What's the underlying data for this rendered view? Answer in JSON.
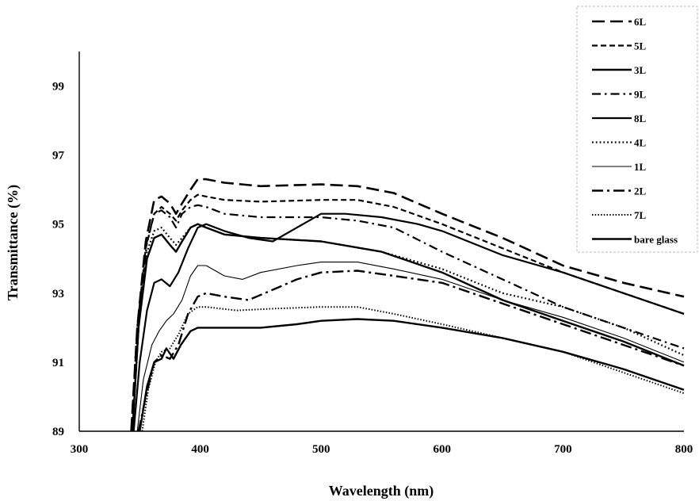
{
  "chart_data": {
    "type": "line",
    "xlabel": "Wavelength (nm)",
    "ylabel": "Transmittance (%)",
    "xlim": [
      300,
      800
    ],
    "ylim": [
      89,
      100
    ],
    "x_ticks": [
      300,
      400,
      500,
      600,
      700,
      800
    ],
    "y_ticks": [
      89,
      91,
      93,
      95,
      97,
      99
    ],
    "grid": false,
    "legend_position": "top-right",
    "series": [
      {
        "name": "6L",
        "style": "long-dash",
        "points": [
          [
            343,
            89
          ],
          [
            348,
            92
          ],
          [
            355,
            94.5
          ],
          [
            362,
            95.7
          ],
          [
            368,
            95.8
          ],
          [
            375,
            95.6
          ],
          [
            380,
            95.3
          ],
          [
            385,
            95.6
          ],
          [
            392,
            96.0
          ],
          [
            398,
            96.3
          ],
          [
            405,
            96.3
          ],
          [
            420,
            96.2
          ],
          [
            450,
            96.1
          ],
          [
            500,
            96.15
          ],
          [
            530,
            96.1
          ],
          [
            560,
            95.9
          ],
          [
            600,
            95.3
          ],
          [
            650,
            94.6
          ],
          [
            700,
            93.8
          ],
          [
            750,
            93.3
          ],
          [
            800,
            92.9
          ]
        ]
      },
      {
        "name": "5L",
        "style": "dash",
        "points": [
          [
            343,
            89
          ],
          [
            348,
            92
          ],
          [
            355,
            94.3
          ],
          [
            362,
            95.3
          ],
          [
            368,
            95.5
          ],
          [
            375,
            95.3
          ],
          [
            380,
            95.1
          ],
          [
            385,
            95.4
          ],
          [
            392,
            95.7
          ],
          [
            398,
            95.85
          ],
          [
            405,
            95.8
          ],
          [
            420,
            95.7
          ],
          [
            450,
            95.65
          ],
          [
            500,
            95.7
          ],
          [
            530,
            95.7
          ],
          [
            560,
            95.5
          ],
          [
            600,
            95.0
          ],
          [
            650,
            94.3
          ],
          [
            700,
            93.6
          ],
          [
            750,
            93.0
          ],
          [
            800,
            92.4
          ]
        ]
      },
      {
        "name": "3L",
        "style": "solid-thick",
        "points": [
          [
            344,
            89
          ],
          [
            349,
            92
          ],
          [
            356,
            94.0
          ],
          [
            362,
            94.6
          ],
          [
            368,
            94.7
          ],
          [
            375,
            94.4
          ],
          [
            380,
            94.2
          ],
          [
            385,
            94.5
          ],
          [
            392,
            94.9
          ],
          [
            398,
            95.0
          ],
          [
            405,
            94.9
          ],
          [
            420,
            94.7
          ],
          [
            450,
            94.6
          ],
          [
            500,
            94.5
          ],
          [
            550,
            94.2
          ],
          [
            600,
            93.6
          ],
          [
            650,
            92.8
          ],
          [
            700,
            92.2
          ],
          [
            750,
            91.6
          ],
          [
            800,
            90.9
          ]
        ]
      },
      {
        "name": "9L",
        "style": "dash-dot",
        "points": [
          [
            344,
            89
          ],
          [
            349,
            92
          ],
          [
            356,
            94.5
          ],
          [
            362,
            95.3
          ],
          [
            368,
            95.4
          ],
          [
            375,
            95.2
          ],
          [
            380,
            94.9
          ],
          [
            385,
            95.3
          ],
          [
            392,
            95.5
          ],
          [
            398,
            95.55
          ],
          [
            405,
            95.5
          ],
          [
            420,
            95.3
          ],
          [
            450,
            95.2
          ],
          [
            500,
            95.2
          ],
          [
            530,
            95.1
          ],
          [
            560,
            94.9
          ],
          [
            600,
            94.2
          ],
          [
            650,
            93.4
          ],
          [
            700,
            92.6
          ],
          [
            750,
            92.0
          ],
          [
            800,
            91.4
          ]
        ]
      },
      {
        "name": "8L",
        "style": "solid-medium",
        "points": [
          [
            345,
            89
          ],
          [
            350,
            91
          ],
          [
            356,
            92.5
          ],
          [
            362,
            93.3
          ],
          [
            368,
            93.4
          ],
          [
            375,
            93.2
          ],
          [
            382,
            93.6
          ],
          [
            390,
            94.3
          ],
          [
            398,
            94.9
          ],
          [
            405,
            95.0
          ],
          [
            420,
            94.8
          ],
          [
            440,
            94.6
          ],
          [
            460,
            94.5
          ],
          [
            480,
            94.9
          ],
          [
            500,
            95.3
          ],
          [
            520,
            95.3
          ],
          [
            550,
            95.2
          ],
          [
            580,
            95.0
          ],
          [
            600,
            94.8
          ],
          [
            650,
            94.1
          ],
          [
            700,
            93.6
          ],
          [
            750,
            93.0
          ],
          [
            800,
            92.4
          ]
        ]
      },
      {
        "name": "4L",
        "style": "dot",
        "points": [
          [
            344,
            89
          ],
          [
            349,
            92
          ],
          [
            356,
            94.2
          ],
          [
            362,
            94.8
          ],
          [
            368,
            94.9
          ],
          [
            375,
            94.6
          ],
          [
            380,
            94.4
          ],
          [
            385,
            94.6
          ],
          [
            392,
            94.9
          ],
          [
            398,
            95.0
          ],
          [
            405,
            94.9
          ],
          [
            420,
            94.7
          ],
          [
            450,
            94.6
          ],
          [
            500,
            94.5
          ],
          [
            550,
            94.2
          ],
          [
            600,
            93.7
          ],
          [
            650,
            93.0
          ],
          [
            700,
            92.6
          ],
          [
            750,
            92.0
          ],
          [
            800,
            91.2
          ]
        ]
      },
      {
        "name": "1L",
        "style": "solid-thin",
        "points": [
          [
            348,
            89
          ],
          [
            353,
            90.5
          ],
          [
            360,
            91.5
          ],
          [
            366,
            91.9
          ],
          [
            372,
            92.2
          ],
          [
            378,
            92.4
          ],
          [
            385,
            92.8
          ],
          [
            392,
            93.5
          ],
          [
            398,
            93.8
          ],
          [
            405,
            93.8
          ],
          [
            420,
            93.5
          ],
          [
            435,
            93.4
          ],
          [
            450,
            93.6
          ],
          [
            480,
            93.8
          ],
          [
            500,
            93.9
          ],
          [
            530,
            93.9
          ],
          [
            560,
            93.7
          ],
          [
            600,
            93.4
          ],
          [
            650,
            92.8
          ],
          [
            700,
            92.3
          ],
          [
            750,
            91.7
          ],
          [
            800,
            91.0
          ]
        ]
      },
      {
        "name": "2L",
        "style": "long-dash-dot",
        "points": [
          [
            349,
            89
          ],
          [
            355,
            90
          ],
          [
            362,
            91.0
          ],
          [
            368,
            91.2
          ],
          [
            375,
            91.1
          ],
          [
            382,
            91.5
          ],
          [
            390,
            92.4
          ],
          [
            398,
            92.9
          ],
          [
            405,
            93.0
          ],
          [
            420,
            92.9
          ],
          [
            440,
            92.8
          ],
          [
            460,
            93.1
          ],
          [
            480,
            93.4
          ],
          [
            500,
            93.6
          ],
          [
            530,
            93.65
          ],
          [
            560,
            93.5
          ],
          [
            600,
            93.3
          ],
          [
            650,
            92.7
          ],
          [
            700,
            92.1
          ],
          [
            750,
            91.5
          ],
          [
            800,
            90.9
          ]
        ]
      },
      {
        "name": "7L",
        "style": "dot-fine",
        "points": [
          [
            352,
            89
          ],
          [
            357,
            90.2
          ],
          [
            363,
            91.0
          ],
          [
            368,
            91.3
          ],
          [
            375,
            91.4
          ],
          [
            382,
            91.8
          ],
          [
            390,
            92.4
          ],
          [
            398,
            92.6
          ],
          [
            405,
            92.6
          ],
          [
            430,
            92.5
          ],
          [
            460,
            92.55
          ],
          [
            500,
            92.6
          ],
          [
            530,
            92.6
          ],
          [
            560,
            92.4
          ],
          [
            600,
            92.1
          ],
          [
            650,
            91.7
          ],
          [
            700,
            91.3
          ],
          [
            750,
            90.7
          ],
          [
            800,
            90.1
          ]
        ]
      },
      {
        "name": "bare glass",
        "style": "solid-thick",
        "points": [
          [
            350,
            89
          ],
          [
            356,
            90.3
          ],
          [
            362,
            91.0
          ],
          [
            368,
            91.1
          ],
          [
            372,
            91.4
          ],
          [
            378,
            91.1
          ],
          [
            384,
            91.5
          ],
          [
            392,
            91.9
          ],
          [
            398,
            92.0
          ],
          [
            420,
            92.0
          ],
          [
            450,
            92.0
          ],
          [
            480,
            92.1
          ],
          [
            500,
            92.2
          ],
          [
            530,
            92.25
          ],
          [
            560,
            92.2
          ],
          [
            600,
            92.0
          ],
          [
            650,
            91.7
          ],
          [
            700,
            91.3
          ],
          [
            750,
            90.8
          ],
          [
            800,
            90.2
          ]
        ]
      }
    ]
  }
}
